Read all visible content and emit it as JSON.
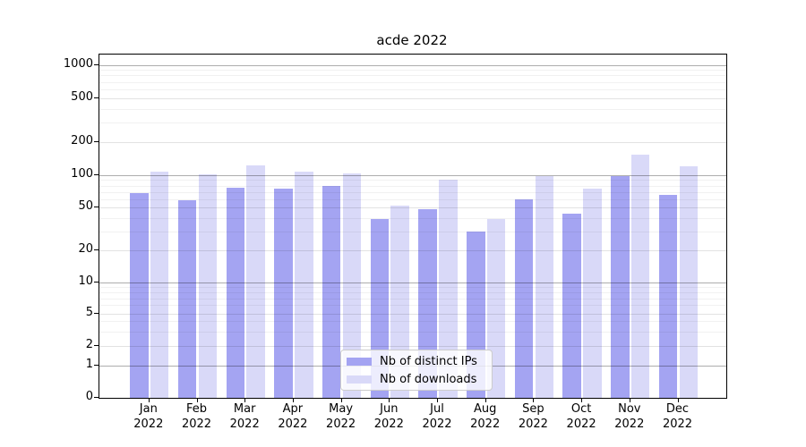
{
  "title": "acde 2022",
  "chart_data": {
    "type": "bar",
    "title": "acde 2022",
    "year": "2022",
    "categories": [
      "Jan",
      "Feb",
      "Mar",
      "Apr",
      "May",
      "Jun",
      "Jul",
      "Aug",
      "Sep",
      "Oct",
      "Nov",
      "Dec"
    ],
    "series": [
      {
        "name": "Nb of distinct IPs",
        "color": "#a4a4f2",
        "values": [
          68,
          58,
          77,
          75,
          80,
          39,
          48,
          30,
          60,
          44,
          99,
          66
        ]
      },
      {
        "name": "Nb of downloads",
        "color": "#d9d9f8",
        "values": [
          108,
          101,
          122,
          108,
          103,
          52,
          90,
          39,
          98,
          75,
          155,
          120
        ]
      }
    ],
    "xlabel": "",
    "ylabel": "",
    "yscale": "symlog",
    "ylim": [
      0,
      1200
    ],
    "y_ticks": [
      0,
      1,
      2,
      5,
      10,
      20,
      50,
      100,
      200,
      500,
      1000
    ],
    "y_tick_labels": [
      "0",
      "1",
      "2",
      "5",
      "10",
      "20",
      "50",
      "100",
      "200",
      "500",
      "1000"
    ],
    "y_minor_gridlines": [
      3,
      4,
      6,
      7,
      8,
      9,
      30,
      40,
      60,
      70,
      80,
      90,
      300,
      400,
      600,
      700,
      800,
      900
    ],
    "grid": true,
    "legend_position": "lower-center"
  },
  "colors": {
    "distinct_ips_bar": "#a4a4f2",
    "downloads_bar": "#d9d9f8",
    "axis": "#000000",
    "legend_border": "#cccccc"
  }
}
